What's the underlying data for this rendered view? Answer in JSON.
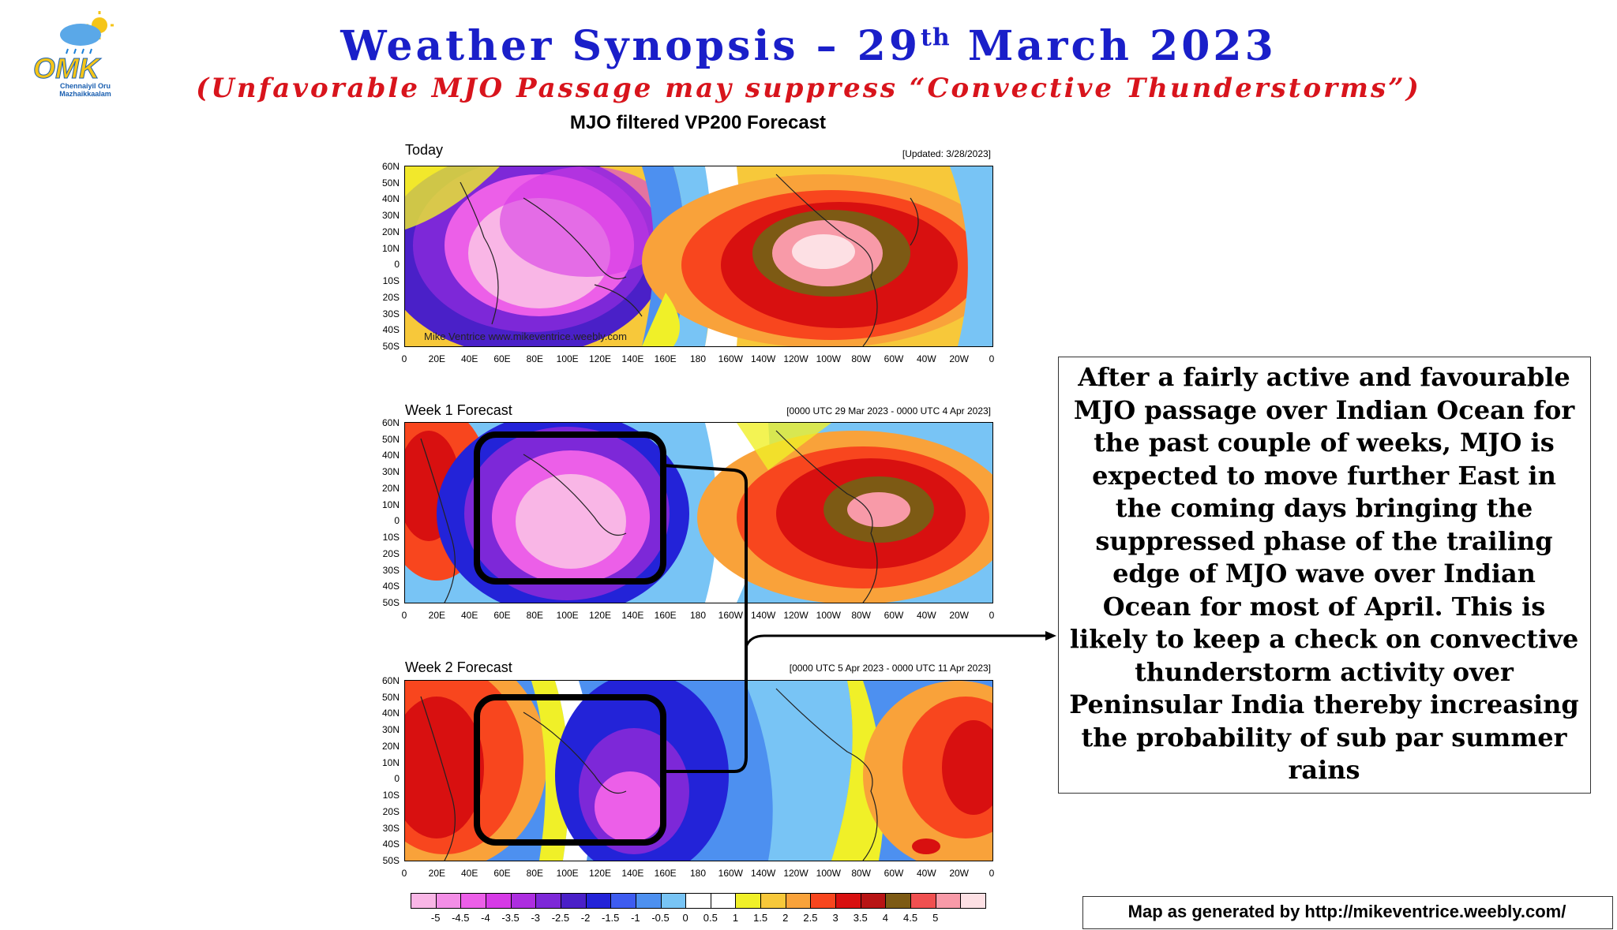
{
  "header": {
    "title_main": "Weather Synopsis – 29",
    "title_sup": "th",
    "title_rest": " March 2023",
    "subtitle": "(Unfavorable MJO Passage may suppress “Convective Thunderstorms”)"
  },
  "logo": {
    "brand": "OMK",
    "line1": "Chennaiyil Oru",
    "line2": "Mazhaikkaalam"
  },
  "figure": {
    "title": "MJO filtered VP200 Forecast",
    "panels": [
      {
        "name": "Today",
        "range": "[Updated: 3/28/2023]",
        "watermark": "Mike Ventrice www.mikeventrice.weebly.com"
      },
      {
        "name": "Week 1 Forecast",
        "range": "[0000 UTC 29 Mar 2023 - 0000 UTC 4 Apr 2023]"
      },
      {
        "name": "Week 2 Forecast",
        "range": "[0000 UTC 5 Apr 2023 - 0000 UTC 11 Apr 2023]"
      }
    ],
    "lat_ticks": [
      "60N",
      "50N",
      "40N",
      "30N",
      "20N",
      "10N",
      "0",
      "10S",
      "20S",
      "30S",
      "40S",
      "50S"
    ],
    "lon_ticks": [
      "0",
      "20E",
      "40E",
      "60E",
      "80E",
      "100E",
      "120E",
      "140E",
      "160E",
      "180",
      "160W",
      "140W",
      "120W",
      "100W",
      "80W",
      "60W",
      "40W",
      "20W",
      "0"
    ],
    "colorbar": {
      "labels": [
        "-5",
        "-4.5",
        "-4",
        "-3.5",
        "-3",
        "-2.5",
        "-2",
        "-1.5",
        "-1",
        "-0.5",
        "0",
        "0.5",
        "1",
        "1.5",
        "2",
        "2.5",
        "3",
        "3.5",
        "4",
        "4.5",
        "5"
      ],
      "colors": [
        "#f9b6e6",
        "#f38ee6",
        "#ec5fe8",
        "#d63ae6",
        "#ad2ee0",
        "#7d28d8",
        "#4a20c8",
        "#2323d8",
        "#3e5cf0",
        "#4d90f0",
        "#78c4f5",
        "#ffffff",
        "#ffffff",
        "#f0f028",
        "#f7c83a",
        "#f9a23a",
        "#f8461e",
        "#d81010",
        "#b81414",
        "#7d5a14",
        "#f05050",
        "#f89aa8",
        "#fde0e4"
      ]
    }
  },
  "callout": {
    "text": "After a fairly active and favourable MJO passage over Indian Ocean for the past couple of weeks, MJO is expected to move further East in the coming days bringing the suppressed phase of the trailing edge of MJO wave over Indian Ocean for most of April. This is likely to keep a check on convective thunderstorm activity over Peninsular India thereby increasing the probability of sub par summer rains"
  },
  "credit": {
    "text": "Map as generated by http://mikeventrice.weebly.com/"
  }
}
